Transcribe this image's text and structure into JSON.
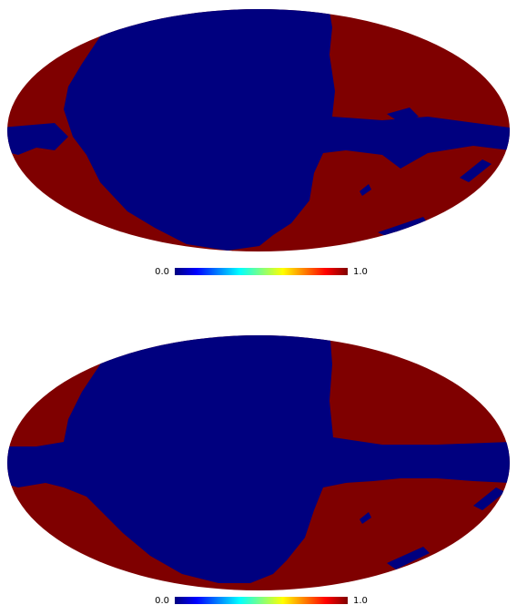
{
  "maps": [
    {
      "colorbar_labels": [
        "0.0",
        "1.0"
      ]
    },
    {
      "colorbar_labels": [
        "0.0",
        "1.0"
      ]
    }
  ]
}
